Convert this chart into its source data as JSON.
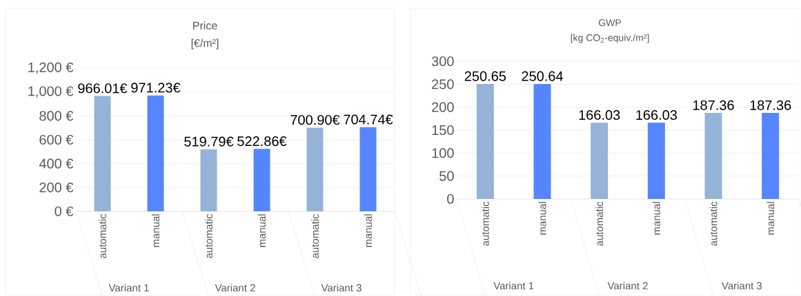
{
  "chart_data": [
    {
      "type": "bar",
      "title": "Price",
      "subtitle": "[€/m²]",
      "categories": [
        "automatic",
        "manual",
        "automatic",
        "manual",
        "automatic",
        "manual"
      ],
      "values": [
        966.01,
        971.23,
        519.79,
        522.86,
        700.9,
        704.74
      ],
      "colors": [
        "#95b3d7",
        "#5586ff",
        "#95b3d7",
        "#5586ff",
        "#95b3d7",
        "#5586ff"
      ],
      "value_labels": [
        "966.01€",
        "971.23€",
        "519.79€",
        "522.86€",
        "700.90€",
        "704.74€"
      ],
      "ylim": [
        0,
        1200
      ],
      "yticks": [
        {
          "value": 0,
          "label": "0 €"
        },
        {
          "value": 200,
          "label": "200 €"
        },
        {
          "value": 400,
          "label": "400 €"
        },
        {
          "value": 600,
          "label": "600 €"
        },
        {
          "value": 800,
          "label": "800 €"
        },
        {
          "value": 1000,
          "label": "1,000 €"
        },
        {
          "value": 1200,
          "label": "1,200 €"
        }
      ],
      "grid": "y",
      "annotations": [
        "Variant 1",
        "Variant 2",
        "Variant 3"
      ]
    },
    {
      "type": "bar",
      "title": "GWP",
      "subtitle": "[kg CO$_{2}$-equiv./m²]",
      "categories": [
        "automatic",
        "manual",
        "automatic",
        "manual",
        "automatic",
        "manual"
      ],
      "values": [
        250.65,
        250.64,
        166.03,
        166.03,
        187.36,
        187.36
      ],
      "colors": [
        "#95b3d7",
        "#5586ff",
        "#95b3d7",
        "#5586ff",
        "#95b3d7",
        "#5586ff"
      ],
      "value_labels": [
        "250.65",
        "250.64",
        "166.03",
        "166.03",
        "187.36",
        "187.36"
      ],
      "ylim": [
        0,
        300
      ],
      "yticks": [
        0,
        50,
        100,
        150,
        200,
        250,
        300
      ],
      "grid": "y",
      "annotations": [
        "Variant 1",
        "Variant 2",
        "Variant 3"
      ]
    }
  ]
}
